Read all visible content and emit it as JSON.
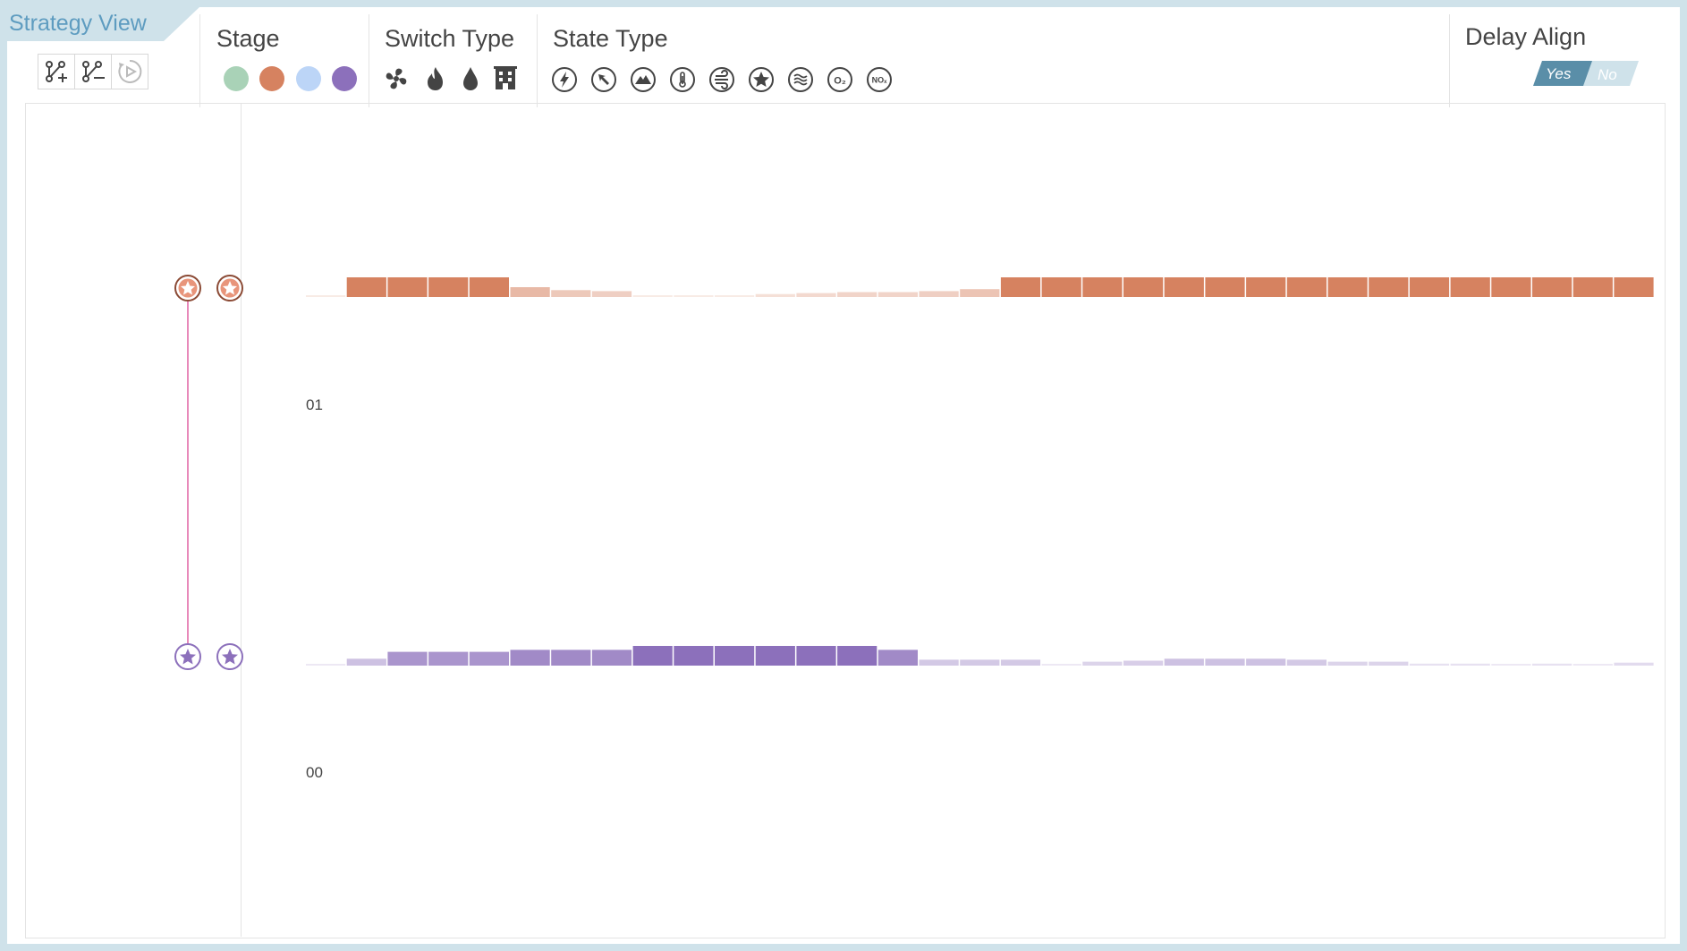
{
  "title": "Strategy View",
  "toolbar": {
    "buttons": [
      {
        "name": "add-link-button",
        "icon": "add-link-icon"
      },
      {
        "name": "remove-link-button",
        "icon": "remove-link-icon"
      },
      {
        "name": "play-button",
        "icon": "play-cycle-icon"
      }
    ]
  },
  "stage": {
    "label": "Stage",
    "colors": [
      "#a9d2b7",
      "#d68260",
      "#bcd5f7",
      "#8c70bb"
    ]
  },
  "switch_type": {
    "label": "Switch Type",
    "icons": [
      "fan-icon",
      "fire-icon",
      "water-drop-icon",
      "building-icon"
    ]
  },
  "state_type": {
    "label": "State Type",
    "icons": [
      "lightning-icon",
      "cursor-arrow-icon",
      "mountain-icon",
      "thermometer-icon",
      "wind-icon",
      "star-icon",
      "waves-icon",
      "oxygen-icon",
      "nox-icon"
    ],
    "icon_text": {
      "oxygen": "O₂",
      "nox": "NOₓ"
    }
  },
  "delay_align": {
    "label": "Delay Align",
    "yes": "Yes",
    "no": "No",
    "selected": "Yes"
  },
  "rows": [
    {
      "label": "01",
      "color": "#d68260",
      "values": [
        0.05,
        1,
        1,
        1,
        1,
        0.5,
        0.35,
        0.3,
        0.05,
        0.05,
        0.05,
        0.15,
        0.2,
        0.25,
        0.25,
        0.3,
        0.4,
        1,
        1,
        1,
        1,
        1,
        1,
        1,
        1,
        1,
        1,
        1,
        1,
        1,
        1,
        1,
        1
      ]
    },
    {
      "label": "00",
      "color": "#8c70bb",
      "values": [
        0.05,
        0.35,
        0.7,
        0.7,
        0.7,
        0.8,
        0.8,
        0.8,
        1,
        1,
        1,
        1,
        1,
        1,
        0.8,
        0.3,
        0.3,
        0.3,
        0.05,
        0.2,
        0.25,
        0.35,
        0.35,
        0.35,
        0.3,
        0.2,
        0.2,
        0.1,
        0.1,
        0.05,
        0.1,
        0.05,
        0.15
      ]
    }
  ]
}
